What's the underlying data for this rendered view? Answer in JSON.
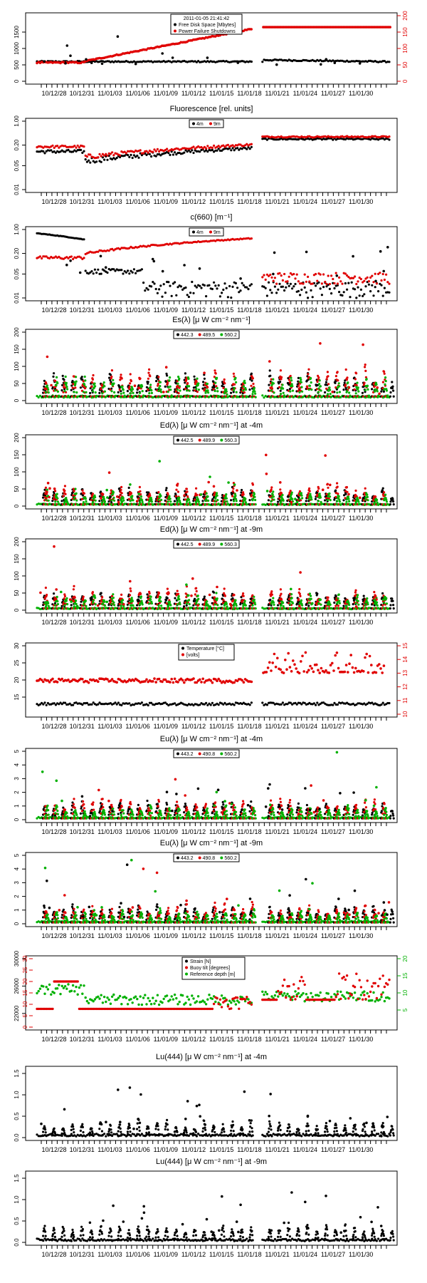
{
  "figure": {
    "date_ticks": [
      "10/12/28",
      "10/12/31",
      "11/01/03",
      "11/01/06",
      "11/01/09",
      "11/01/12",
      "11/01/15",
      "11/01/18",
      "11/01/21",
      "11/01/24",
      "11/01/27",
      "11/01/30"
    ]
  },
  "chart_data": [
    {
      "id": "p1",
      "type": "scatter",
      "title": "",
      "legend_title": "2011-01-05 21:41:42",
      "ylim": [
        0,
        2000
      ],
      "yticks": [
        "0",
        "500",
        "1000",
        "1500"
      ],
      "ylim_right": [
        0,
        200
      ],
      "yticks_right": [
        "0",
        "50",
        "100",
        "150",
        "200"
      ],
      "series": [
        {
          "name": "Free Disk Space [Mbytes]",
          "color": "#000000",
          "axis": "left"
        },
        {
          "name": "Power Failure Shutdowns",
          "color": "#e00000",
          "axis": "right"
        }
      ]
    },
    {
      "id": "p2",
      "type": "scatter",
      "title": "Fluorescence  [rel. units]",
      "ylim": [
        0.01,
        1
      ],
      "yticks": [
        "0.01",
        "0.05",
        "0.20",
        "1.00"
      ],
      "log": true,
      "series": [
        {
          "name": "4m",
          "color": "#000000"
        },
        {
          "name": "9m",
          "color": "#e00000"
        }
      ]
    },
    {
      "id": "p3",
      "type": "scatter",
      "title": "c(660)  [m⁻¹]",
      "ylim": [
        0.01,
        1
      ],
      "yticks": [
        "0.01",
        "0.05",
        "0.20",
        "1.00"
      ],
      "log": true,
      "series": [
        {
          "name": "4m",
          "color": "#000000"
        },
        {
          "name": "9m",
          "color": "#e00000"
        }
      ]
    },
    {
      "id": "p4",
      "type": "scatter",
      "title": "Es(λ)  [μ W cm⁻² nm⁻¹]",
      "ylim": [
        0,
        200
      ],
      "yticks": [
        "0",
        "50",
        "100",
        "150",
        "200"
      ],
      "series": [
        {
          "name": "442.3",
          "color": "#000000"
        },
        {
          "name": "489.5",
          "color": "#e00000"
        },
        {
          "name": "560.2",
          "color": "#00b000"
        }
      ]
    },
    {
      "id": "p5",
      "type": "scatter",
      "title": "Ed(λ)  [μ W cm⁻² nm⁻¹] at -4m",
      "ylim": [
        0,
        200
      ],
      "yticks": [
        "0",
        "50",
        "100",
        "150",
        "200"
      ],
      "series": [
        {
          "name": "442.5",
          "color": "#000000"
        },
        {
          "name": "489.9",
          "color": "#e00000"
        },
        {
          "name": "560.3",
          "color": "#00b000"
        }
      ]
    },
    {
      "id": "p6",
      "type": "scatter",
      "title": "Ed(λ)  [μ W cm⁻² nm⁻¹] at -9m",
      "ylim": [
        0,
        200
      ],
      "yticks": [
        "0",
        "50",
        "100",
        "150",
        "200"
      ],
      "series": [
        {
          "name": "442.5",
          "color": "#000000"
        },
        {
          "name": "489.9",
          "color": "#e00000"
        },
        {
          "name": "560.3",
          "color": "#00b000"
        }
      ]
    },
    {
      "id": "p7",
      "type": "scatter",
      "title": "",
      "ylim": [
        10,
        30
      ],
      "yticks": [
        "15",
        "20",
        "25",
        "30"
      ],
      "ylim_right": [
        10,
        15
      ],
      "yticks_right": [
        "10",
        "11",
        "12",
        "13",
        "14",
        "15"
      ],
      "series": [
        {
          "name": "Temperature [°C]",
          "color": "#000000",
          "axis": "left"
        },
        {
          "name": "[volts]",
          "color": "#e00000",
          "axis": "right"
        }
      ]
    },
    {
      "id": "p8",
      "type": "scatter",
      "title": "Eu(λ)  [μ W cm⁻² nm⁻¹] at -4m",
      "ylim": [
        0,
        5
      ],
      "yticks": [
        "0",
        "1",
        "2",
        "3",
        "4",
        "5"
      ],
      "series": [
        {
          "name": "443.2",
          "color": "#000000"
        },
        {
          "name": "490.8",
          "color": "#e00000"
        },
        {
          "name": "560.2",
          "color": "#00b000"
        }
      ]
    },
    {
      "id": "p9",
      "type": "scatter",
      "title": "Eu(λ)  [μ W cm⁻² nm⁻¹] at -9m",
      "ylim": [
        0,
        5
      ],
      "yticks": [
        "0",
        "1",
        "2",
        "3",
        "4",
        "5"
      ],
      "series": [
        {
          "name": "443.2",
          "color": "#000000"
        },
        {
          "name": "490.8",
          "color": "#e00000"
        },
        {
          "name": "560.2",
          "color": "#00b000"
        }
      ]
    },
    {
      "id": "p10",
      "type": "scatter",
      "title": "",
      "ylim": [
        20000,
        30000
      ],
      "yticks": [
        "22000",
        "26000",
        "30000"
      ],
      "ylim_red": [
        0,
        30
      ],
      "yticks_red": [
        "0",
        "5",
        "10",
        "15",
        "20",
        "25",
        "30"
      ],
      "ylim_right": [
        0,
        20
      ],
      "yticks_right": [
        "5",
        "10",
        "15",
        "20"
      ],
      "series": [
        {
          "name": "Strain [N]",
          "color": "#000000"
        },
        {
          "name": "Buoy tilt [degrees]",
          "color": "#e00000"
        },
        {
          "name": "Reference depth [m]",
          "color": "#00b000"
        }
      ]
    },
    {
      "id": "p11",
      "type": "scatter",
      "title": "Lu(444)  [μ W cm⁻² nm⁻¹] at -4m",
      "ylim": [
        0,
        1.6
      ],
      "yticks": [
        "0.0",
        "0.5",
        "1.0",
        "1.5"
      ],
      "series": [
        {
          "color": "#000000"
        }
      ]
    },
    {
      "id": "p12",
      "type": "scatter",
      "title": "Lu(444)  [μ W cm⁻² nm⁻¹] at -9m",
      "ylim": [
        0,
        1.6
      ],
      "yticks": [
        "0.0",
        "0.5",
        "1.0",
        "1.5"
      ],
      "series": [
        {
          "color": "#000000"
        }
      ]
    }
  ]
}
